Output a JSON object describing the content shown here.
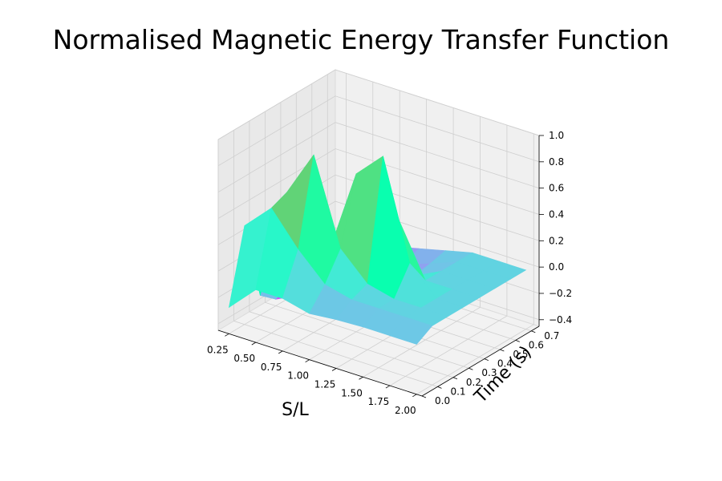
{
  "chart_data": {
    "type": "surface3d",
    "title": "Normalised Magnetic Energy Transfer Function",
    "xlabel": "S/L",
    "ylabel": "Time (s)",
    "zlabel": "",
    "colormap": "rainbow",
    "xlim": [
      0.15,
      2.05
    ],
    "ylim": [
      0.0,
      0.75
    ],
    "zlim": [
      -0.45,
      1.0
    ],
    "x_ticks": [
      "0.25",
      "0.50",
      "0.75",
      "1.00",
      "1.25",
      "1.50",
      "1.75",
      "2.00"
    ],
    "y_ticks": [
      "0.0",
      "0.1",
      "0.2",
      "0.3",
      "0.4",
      "0.5",
      "0.6",
      "0.7"
    ],
    "z_ticks": [
      "−0.4",
      "−0.2",
      "0.0",
      "0.2",
      "0.4",
      "0.6",
      "0.8",
      "1.0"
    ],
    "x_tick_values": [
      0.25,
      0.5,
      0.75,
      1.0,
      1.25,
      1.5,
      1.75,
      2.0
    ],
    "y_tick_values": [
      0.0,
      0.1,
      0.2,
      0.3,
      0.4,
      0.5,
      0.6,
      0.7
    ],
    "z_tick_values": [
      -0.4,
      -0.2,
      0.0,
      0.2,
      0.4,
      0.6,
      0.8,
      1.0
    ],
    "x": [
      0.25,
      0.5,
      0.75,
      1.0,
      1.25,
      1.5,
      1.75,
      2.0
    ],
    "y": [
      0.0,
      0.1,
      0.2,
      0.3,
      0.4,
      0.5,
      0.6,
      0.7
    ],
    "z": [
      [
        -0.25,
        -0.05,
        -0.05,
        -0.1,
        -0.08,
        -0.07,
        -0.07,
        -0.07
      ],
      [
        0.3,
        0.5,
        0.25,
        0.05,
        0.0,
        0.0,
        0.0,
        0.0
      ],
      [
        -0.3,
        0.55,
        0.9,
        0.25,
        0.05,
        0.0,
        0.0,
        0.0
      ],
      [
        -0.4,
        -0.1,
        0.1,
        0.75,
        0.95,
        0.2,
        0.0,
        0.0
      ],
      [
        -0.45,
        -0.3,
        -0.2,
        -0.05,
        0.4,
        0.0,
        0.0,
        0.0
      ],
      [
        -0.35,
        -0.3,
        -0.25,
        -0.2,
        -0.1,
        0.0,
        0.0,
        0.0
      ],
      [
        -0.3,
        -0.25,
        -0.2,
        -0.15,
        -0.08,
        0.0,
        0.0,
        0.0
      ],
      [
        -0.25,
        -0.2,
        -0.15,
        -0.1,
        -0.05,
        0.0,
        0.0,
        0.0
      ]
    ],
    "grid": true
  }
}
